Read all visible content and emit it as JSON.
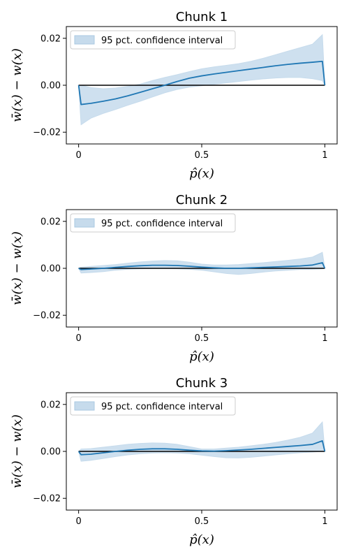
{
  "chart_data": [
    {
      "type": "line",
      "title": "Chunk 1",
      "xlabel": "p̂(x)",
      "ylabel": "w̄(x) − w(x)",
      "xlim": [
        -0.05,
        1.05
      ],
      "ylim": [
        -0.025,
        0.025
      ],
      "xticks": [
        0,
        0.5,
        1
      ],
      "xtick_labels": [
        "0",
        "0.5",
        "1"
      ],
      "yticks": [
        -0.02,
        0.0,
        0.02
      ],
      "ytick_labels": [
        "−0.02",
        "0.00",
        "0.02"
      ],
      "legend": {
        "label": "95 pct. confidence interval",
        "position": "upper-left"
      },
      "colors": {
        "line": "#1f77b4",
        "band": "#c6dbec",
        "reference": "#000000"
      },
      "series": [
        {
          "kind": "line",
          "x": [
            0,
            0.01,
            0.05,
            0.1,
            0.15,
            0.2,
            0.25,
            0.3,
            0.35,
            0.4,
            0.45,
            0.5,
            0.55,
            0.6,
            0.65,
            0.7,
            0.75,
            0.8,
            0.85,
            0.9,
            0.95,
            0.99,
            1.0
          ],
          "y": [
            0,
            -0.0082,
            -0.0077,
            -0.0068,
            -0.0058,
            -0.0045,
            -0.003,
            -0.0015,
            0.0,
            0.0016,
            0.003,
            0.004,
            0.0048,
            0.0055,
            0.0062,
            0.0069,
            0.0076,
            0.0083,
            0.0089,
            0.0094,
            0.0098,
            0.0102,
            0.0
          ]
        },
        {
          "kind": "band",
          "x": [
            0,
            0.01,
            0.05,
            0.1,
            0.15,
            0.2,
            0.25,
            0.3,
            0.35,
            0.4,
            0.45,
            0.5,
            0.55,
            0.6,
            0.65,
            0.7,
            0.75,
            0.8,
            0.85,
            0.9,
            0.95,
            0.99,
            1.0
          ],
          "lower": [
            0,
            -0.0168,
            -0.014,
            -0.012,
            -0.0103,
            -0.0085,
            -0.0068,
            -0.005,
            -0.0032,
            -0.0018,
            -0.0008,
            -0.0002,
            0.0004,
            0.001,
            0.0016,
            0.0022,
            0.0027,
            0.0031,
            0.0033,
            0.0033,
            0.0028,
            0.002,
            0.0
          ],
          "upper": [
            0,
            0.0,
            -0.001,
            -0.0015,
            -0.0012,
            -0.0005,
            0.0005,
            0.002,
            0.0033,
            0.0045,
            0.0058,
            0.007,
            0.0078,
            0.0085,
            0.0092,
            0.0102,
            0.0115,
            0.013,
            0.0145,
            0.016,
            0.0175,
            0.0215,
            0.0
          ]
        },
        {
          "kind": "reference",
          "x": [
            0,
            1
          ],
          "y": [
            0,
            0
          ]
        }
      ]
    },
    {
      "type": "line",
      "title": "Chunk 2",
      "xlabel": "p̂(x)",
      "ylabel": "w̄(x) − w(x)",
      "xlim": [
        -0.05,
        1.05
      ],
      "ylim": [
        -0.025,
        0.025
      ],
      "xticks": [
        0,
        0.5,
        1
      ],
      "xtick_labels": [
        "0",
        "0.5",
        "1"
      ],
      "yticks": [
        -0.02,
        0.0,
        0.02
      ],
      "ytick_labels": [
        "−0.02",
        "0.00",
        "0.02"
      ],
      "legend": {
        "label": "95 pct. confidence interval",
        "position": "upper-left"
      },
      "colors": {
        "line": "#1f77b4",
        "band": "#c6dbec",
        "reference": "#000000"
      },
      "series": [
        {
          "kind": "line",
          "x": [
            0,
            0.01,
            0.05,
            0.1,
            0.15,
            0.2,
            0.25,
            0.3,
            0.35,
            0.4,
            0.45,
            0.5,
            0.55,
            0.6,
            0.65,
            0.7,
            0.75,
            0.8,
            0.85,
            0.9,
            0.95,
            0.99,
            1.0
          ],
          "y": [
            0,
            -0.0005,
            -0.0003,
            0.0,
            0.0004,
            0.0008,
            0.0011,
            0.0013,
            0.0013,
            0.0012,
            0.0009,
            0.0005,
            0.0002,
            0.0,
            0.0,
            0.0002,
            0.0004,
            0.0006,
            0.0008,
            0.001,
            0.0014,
            0.0024,
            0.0
          ]
        },
        {
          "kind": "band",
          "x": [
            0,
            0.01,
            0.05,
            0.1,
            0.15,
            0.2,
            0.25,
            0.3,
            0.35,
            0.4,
            0.45,
            0.5,
            0.55,
            0.6,
            0.65,
            0.7,
            0.75,
            0.8,
            0.85,
            0.9,
            0.95,
            0.99,
            1.0
          ],
          "lower": [
            0,
            -0.002,
            -0.0018,
            -0.0014,
            -0.0008,
            -0.0004,
            -0.0002,
            -0.0001,
            -0.0001,
            -0.0002,
            -0.0004,
            -0.0008,
            -0.0015,
            -0.0022,
            -0.0026,
            -0.0022,
            -0.0016,
            -0.0011,
            -0.0008,
            -0.0005,
            -0.0004,
            -0.0002,
            0.0
          ],
          "upper": [
            0,
            0.0005,
            0.0008,
            0.0012,
            0.0016,
            0.0022,
            0.0027,
            0.0031,
            0.0033,
            0.0032,
            0.0026,
            0.0018,
            0.0014,
            0.0014,
            0.0016,
            0.002,
            0.0024,
            0.0029,
            0.0034,
            0.004,
            0.0048,
            0.0068,
            0.0
          ]
        },
        {
          "kind": "reference",
          "x": [
            0,
            1
          ],
          "y": [
            0,
            0
          ]
        }
      ]
    },
    {
      "type": "line",
      "title": "Chunk 3",
      "xlabel": "p̂(x)",
      "ylabel": "w̄(x) − w(x)",
      "xlim": [
        -0.05,
        1.05
      ],
      "ylim": [
        -0.025,
        0.025
      ],
      "xticks": [
        0,
        0.5,
        1
      ],
      "xtick_labels": [
        "0",
        "0.5",
        "1"
      ],
      "yticks": [
        -0.02,
        0.0,
        0.02
      ],
      "ytick_labels": [
        "−0.02",
        "0.00",
        "0.02"
      ],
      "legend": {
        "label": "95 pct. confidence interval",
        "position": "upper-left"
      },
      "colors": {
        "line": "#1f77b4",
        "band": "#c6dbec",
        "reference": "#000000"
      },
      "series": [
        {
          "kind": "line",
          "x": [
            0,
            0.01,
            0.05,
            0.1,
            0.15,
            0.2,
            0.25,
            0.3,
            0.35,
            0.4,
            0.45,
            0.5,
            0.55,
            0.6,
            0.65,
            0.7,
            0.75,
            0.8,
            0.85,
            0.9,
            0.95,
            0.99,
            1.0
          ],
          "y": [
            0,
            -0.0014,
            -0.0012,
            -0.0006,
            0.0,
            0.0005,
            0.0009,
            0.0011,
            0.0011,
            0.0009,
            0.0005,
            0.0002,
            0.0001,
            0.0003,
            0.0006,
            0.0009,
            0.0013,
            0.0017,
            0.0021,
            0.0025,
            0.003,
            0.0045,
            0.0
          ]
        },
        {
          "kind": "band",
          "x": [
            0,
            0.01,
            0.05,
            0.1,
            0.15,
            0.2,
            0.25,
            0.3,
            0.35,
            0.4,
            0.45,
            0.5,
            0.55,
            0.6,
            0.65,
            0.7,
            0.75,
            0.8,
            0.85,
            0.9,
            0.95,
            0.99,
            1.0
          ],
          "lower": [
            0,
            -0.0042,
            -0.0038,
            -0.003,
            -0.0022,
            -0.0015,
            -0.001,
            -0.0007,
            -0.0006,
            -0.0007,
            -0.001,
            -0.0016,
            -0.0022,
            -0.0027,
            -0.0028,
            -0.0025,
            -0.002,
            -0.0015,
            -0.001,
            -0.0006,
            -0.0003,
            0.0,
            0.0
          ],
          "upper": [
            0,
            0.001,
            0.0012,
            0.0018,
            0.0024,
            0.003,
            0.0034,
            0.0036,
            0.0035,
            0.003,
            0.002,
            0.001,
            0.001,
            0.0014,
            0.0018,
            0.0024,
            0.003,
            0.0038,
            0.0048,
            0.006,
            0.0078,
            0.0125,
            0.0
          ]
        },
        {
          "kind": "reference",
          "x": [
            0,
            1
          ],
          "y": [
            0,
            0
          ]
        }
      ]
    }
  ]
}
